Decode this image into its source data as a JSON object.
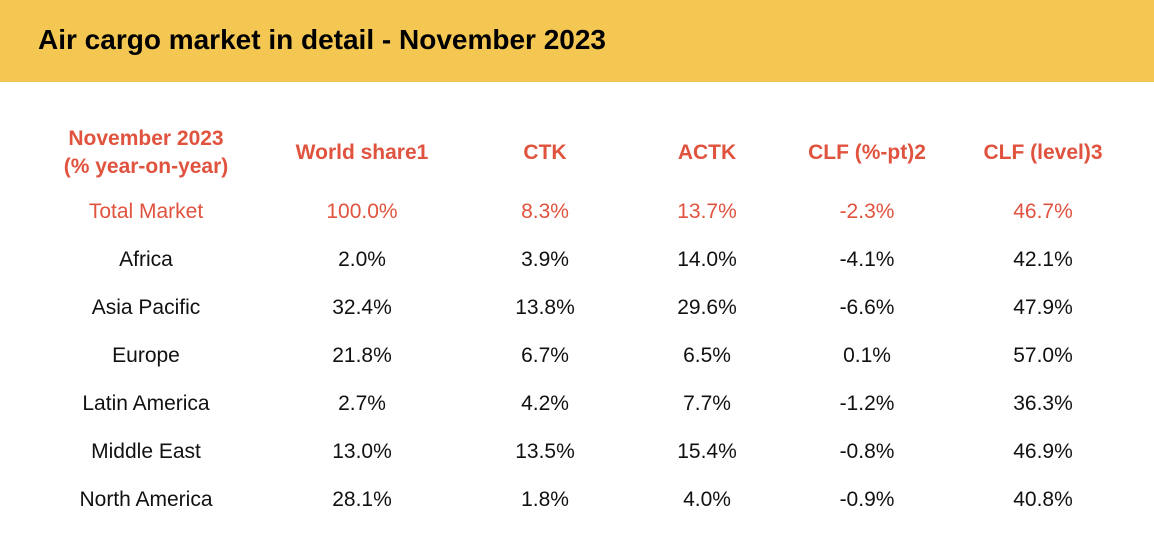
{
  "title": "Air cargo market in detail - November 2023",
  "colors": {
    "banner": "#f4c752",
    "accent": "#e0533e",
    "text": "#111111"
  },
  "table": {
    "header": {
      "region_line1": "November 2023",
      "region_line2": "(% year-on-year)",
      "world_share": "World share1",
      "ctk": "CTK",
      "actk": "ACTK",
      "clf_pt": "CLF (%-pt)2",
      "clf_level": "CLF (level)3"
    },
    "rows": [
      {
        "region": "Total Market",
        "world_share": "100.0%",
        "ctk": "8.3%",
        "actk": "13.7%",
        "clf_pt": "-2.3%",
        "clf_level": "46.7%"
      },
      {
        "region": "Africa",
        "world_share": "2.0%",
        "ctk": "3.9%",
        "actk": "14.0%",
        "clf_pt": "-4.1%",
        "clf_level": "42.1%"
      },
      {
        "region": "Asia Pacific",
        "world_share": "32.4%",
        "ctk": "13.8%",
        "actk": "29.6%",
        "clf_pt": "-6.6%",
        "clf_level": "47.9%"
      },
      {
        "region": "Europe",
        "world_share": "21.8%",
        "ctk": "6.7%",
        "actk": "6.5%",
        "clf_pt": "0.1%",
        "clf_level": "57.0%"
      },
      {
        "region": "Latin America",
        "world_share": "2.7%",
        "ctk": "4.2%",
        "actk": "7.7%",
        "clf_pt": "-1.2%",
        "clf_level": "36.3%"
      },
      {
        "region": "Middle East",
        "world_share": "13.0%",
        "ctk": "13.5%",
        "actk": "15.4%",
        "clf_pt": "-0.8%",
        "clf_level": "46.9%"
      },
      {
        "region": "North America",
        "world_share": "28.1%",
        "ctk": "1.8%",
        "actk": "4.0%",
        "clf_pt": "-0.9%",
        "clf_level": "40.8%"
      }
    ]
  }
}
